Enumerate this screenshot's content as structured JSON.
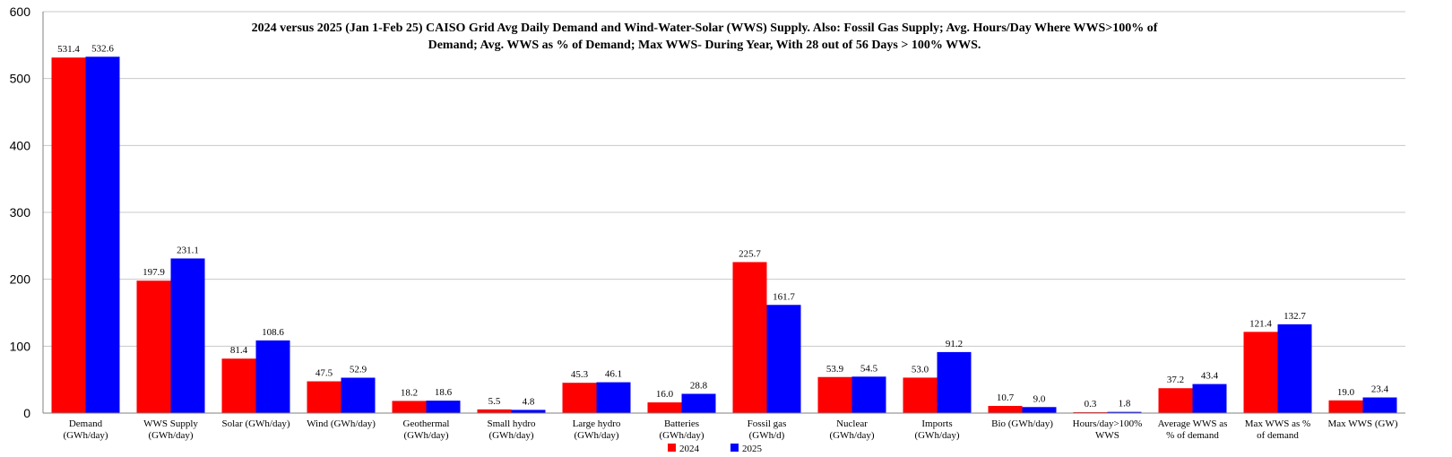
{
  "chart_data": {
    "type": "bar",
    "title_lines": [
      "2024 versus 2025 (Jan 1-Feb 25) CAISO Grid Avg Daily Demand and Wind-Water-Solar (WWS) Supply. Also: Fossil Gas Supply; Avg. Hours/Day Where WWS>100% of",
      "Demand; Avg. WWS as % of Demand; Max WWS- During Year, With 28 out of 56 Days > 100% WWS."
    ],
    "categories": [
      [
        "Demand",
        "(GWh/day)"
      ],
      [
        "WWS Supply",
        "(GWh/day)"
      ],
      [
        "Solar (GWh/day)"
      ],
      [
        "Wind (GWh/day)"
      ],
      [
        "Geothermal",
        "(GWh/day)"
      ],
      [
        "Small hydro",
        "(GWh/day)"
      ],
      [
        "Large hydro",
        "(GWh/day)"
      ],
      [
        "Batteries",
        "(GWh/day)"
      ],
      [
        "Fossil gas",
        "(GWh/d)"
      ],
      [
        "Nuclear",
        "(GWh/day)"
      ],
      [
        "Imports",
        "(GWh/day)"
      ],
      [
        "Bio (GWh/day)"
      ],
      [
        "Hours/day>100%",
        "WWS"
      ],
      [
        "Average WWS as",
        "% of demand"
      ],
      [
        "Max WWS as %",
        "of demand"
      ],
      [
        "Max WWS (GW)"
      ]
    ],
    "series": [
      {
        "name": "2024",
        "color": "#ff0000",
        "values": [
          531.4,
          197.9,
          81.4,
          47.5,
          18.2,
          5.5,
          45.3,
          16.0,
          225.7,
          53.9,
          53.0,
          10.7,
          0.3,
          37.2,
          121.4,
          19.0
        ]
      },
      {
        "name": "2025",
        "color": "#0000ff",
        "values": [
          532.6,
          231.1,
          108.6,
          52.9,
          18.6,
          4.8,
          46.1,
          28.8,
          161.7,
          54.5,
          91.2,
          9.0,
          1.8,
          43.4,
          132.7,
          23.4
        ]
      }
    ],
    "y_ticks": [
      0,
      100,
      200,
      300,
      400,
      500,
      600
    ],
    "ylim": [
      0,
      600
    ],
    "grid": true,
    "legend_position": "bottom"
  }
}
